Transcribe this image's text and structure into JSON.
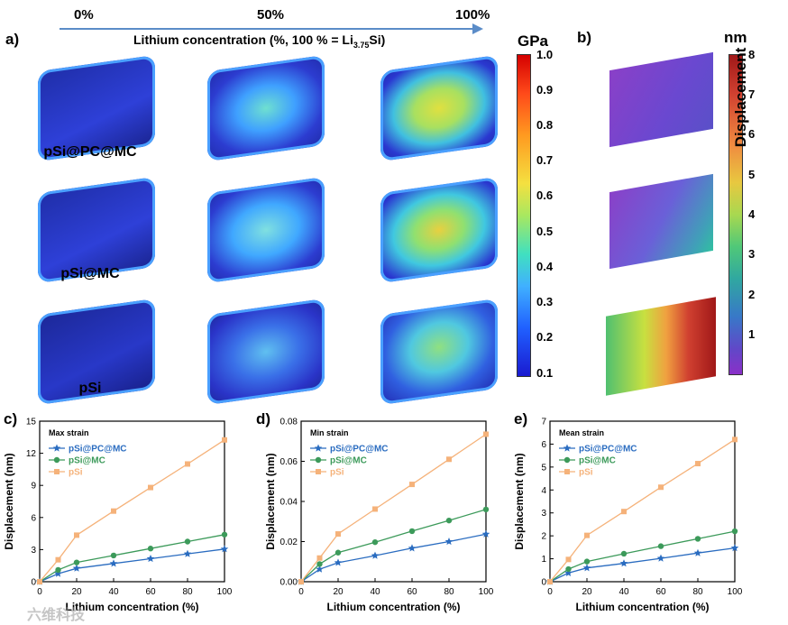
{
  "header": {
    "pct_start": "0%",
    "pct_mid": "50%",
    "pct_end": "100%",
    "concentration_label": "Lithium concentration (%, 100 % = Li",
    "concentration_sub": "3.75",
    "concentration_suffix": "Si)"
  },
  "panels": {
    "a": "a)",
    "b": "b)",
    "c": "c)",
    "d": "d)",
    "e": "e)"
  },
  "rows": [
    "pSi@PC@MC",
    "pSi@MC",
    "pSi"
  ],
  "stress_colorbar": {
    "unit": "GPa",
    "ticks": [
      "1.0",
      "0.9",
      "0.8",
      "0.7",
      "0.6",
      "0.5",
      "0.4",
      "0.3",
      "0.2",
      "0.1"
    ]
  },
  "disp_colorbar": {
    "unit": "nm",
    "title": "Displacement",
    "ticks": [
      "8",
      "7",
      "6",
      "5",
      "4",
      "3",
      "2",
      "1"
    ]
  },
  "watermark": "六维科技",
  "chart_data": [
    {
      "type": "line",
      "id": "c",
      "title": "Max strain",
      "xlabel": "Lithium concentration (%)",
      "ylabel": "Displacement (nm)",
      "xlim": [
        0,
        100
      ],
      "ylim": [
        0,
        15
      ],
      "xticks": [
        "0",
        "20",
        "40",
        "60",
        "80",
        "100"
      ],
      "yticks": [
        "0",
        "3",
        "6",
        "9",
        "12",
        "15"
      ],
      "x": [
        0,
        10,
        20,
        40,
        60,
        80,
        100
      ],
      "series": [
        {
          "name": "pSi@PC@MC",
          "color": "#2a6cc0",
          "marker": "star",
          "values": [
            0,
            0.75,
            1.25,
            1.7,
            2.15,
            2.6,
            3.05
          ]
        },
        {
          "name": "pSi@MC",
          "color": "#3c9a5a",
          "marker": "circle",
          "values": [
            0,
            1.1,
            1.8,
            2.45,
            3.1,
            3.75,
            4.4
          ]
        },
        {
          "name": "pSi",
          "color": "#f5b27a",
          "marker": "square",
          "values": [
            0,
            2.05,
            4.35,
            6.6,
            8.8,
            11.0,
            13.25
          ]
        }
      ]
    },
    {
      "type": "line",
      "id": "d",
      "title": "Min strain",
      "xlabel": "Lithium concentration (%)",
      "ylabel": "Displacement (nm)",
      "xlim": [
        0,
        100
      ],
      "ylim": [
        0,
        0.08
      ],
      "xticks": [
        "0",
        "20",
        "40",
        "60",
        "80",
        "100"
      ],
      "yticks": [
        "0.00",
        "0.02",
        "0.04",
        "0.06",
        "0.08"
      ],
      "x": [
        0,
        10,
        20,
        40,
        60,
        80,
        100
      ],
      "series": [
        {
          "name": "pSi@PC@MC",
          "color": "#2a6cc0",
          "marker": "star",
          "values": [
            0,
            0.0062,
            0.0095,
            0.013,
            0.0167,
            0.02,
            0.0237
          ]
        },
        {
          "name": "pSi@MC",
          "color": "#3c9a5a",
          "marker": "circle",
          "values": [
            0,
            0.0088,
            0.0145,
            0.0197,
            0.0252,
            0.0305,
            0.036
          ]
        },
        {
          "name": "pSi",
          "color": "#f5b27a",
          "marker": "square",
          "values": [
            0,
            0.0118,
            0.0238,
            0.0362,
            0.0485,
            0.061,
            0.0735
          ]
        }
      ]
    },
    {
      "type": "line",
      "id": "e",
      "title": "Mean strain",
      "xlabel": "Lithium concentration (%)",
      "ylabel": "Displacement (nm)",
      "xlim": [
        0,
        100
      ],
      "ylim": [
        0,
        7
      ],
      "xticks": [
        "0",
        "20",
        "40",
        "60",
        "80",
        "100"
      ],
      "yticks": [
        "0",
        "1",
        "2",
        "3",
        "4",
        "5",
        "6",
        "7"
      ],
      "x": [
        0,
        10,
        20,
        40,
        60,
        80,
        100
      ],
      "series": [
        {
          "name": "pSi@PC@MC",
          "color": "#2a6cc0",
          "marker": "star",
          "values": [
            0,
            0.38,
            0.6,
            0.8,
            1.02,
            1.25,
            1.47
          ]
        },
        {
          "name": "pSi@MC",
          "color": "#3c9a5a",
          "marker": "circle",
          "values": [
            0,
            0.55,
            0.88,
            1.22,
            1.55,
            1.87,
            2.2
          ]
        },
        {
          "name": "pSi",
          "color": "#f5b27a",
          "marker": "square",
          "values": [
            0,
            0.97,
            2.02,
            3.06,
            4.12,
            5.15,
            6.2
          ]
        }
      ]
    }
  ]
}
